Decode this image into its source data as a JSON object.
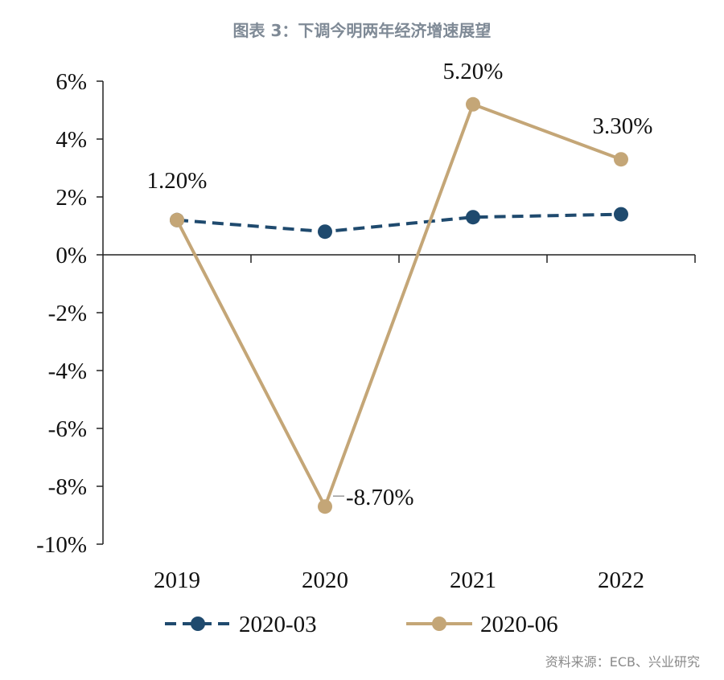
{
  "title": "图表 3：下调今明两年经济增速展望",
  "source": "资料来源：ECB、兴业研究",
  "chart_data": {
    "type": "line",
    "title": "图表 3：下调今明两年经济增速展望",
    "xlabel": "",
    "ylabel": "",
    "categories": [
      "2019",
      "2020",
      "2021",
      "2022"
    ],
    "ylim": [
      -10,
      6
    ],
    "yticks": [
      6,
      4,
      2,
      0,
      -2,
      -4,
      -6,
      -8,
      -10
    ],
    "ytick_labels": [
      "6%",
      "4%",
      "2%",
      "0%",
      "-2%",
      "-4%",
      "-6%",
      "-8%",
      "-10%"
    ],
    "grid": false,
    "legend": "bottom",
    "series": [
      {
        "name": "2020-03",
        "values": [
          1.2,
          0.8,
          1.3,
          1.4
        ],
        "color": "#1f4a6e",
        "style": "dashed",
        "data_labels": []
      },
      {
        "name": "2020-06",
        "values": [
          1.2,
          -8.7,
          5.2,
          3.3
        ],
        "color": "#c4a677",
        "style": "solid",
        "data_labels": [
          "1.20%",
          "-8.70%",
          "5.20%",
          "3.30%"
        ]
      }
    ]
  }
}
